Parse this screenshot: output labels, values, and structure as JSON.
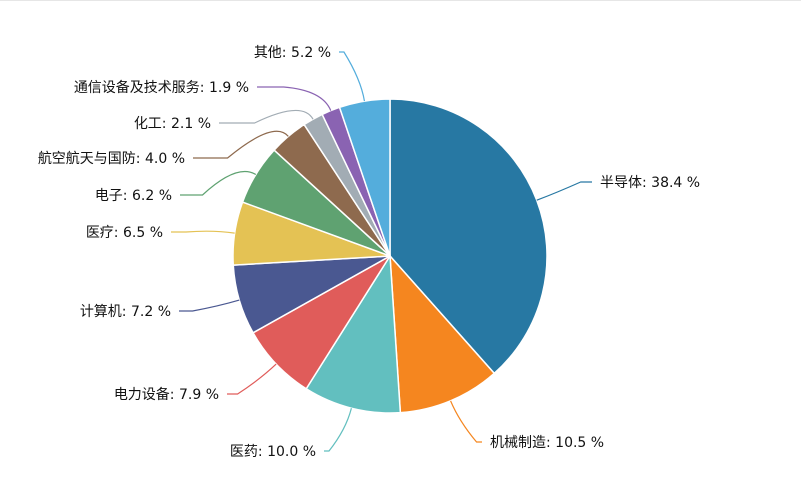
{
  "chart_data": {
    "type": "pie",
    "slices": [
      {
        "name": "半导体",
        "value": 38.4,
        "label": "半导体: 38.4 %",
        "color": "#2778a3"
      },
      {
        "name": "机械制造",
        "value": 10.5,
        "label": "机械制造: 10.5 %",
        "color": "#f5861f"
      },
      {
        "name": "医药",
        "value": 10.0,
        "label": "医药: 10.0 %",
        "color": "#62bfbf"
      },
      {
        "name": "电力设备",
        "value": 7.9,
        "label": "电力设备: 7.9 %",
        "color": "#e05c5a"
      },
      {
        "name": "计算机",
        "value": 7.2,
        "label": "计算机: 7.2 %",
        "color": "#4a5891"
      },
      {
        "name": "医疗",
        "value": 6.5,
        "label": "医疗: 6.5 %",
        "color": "#e4c254"
      },
      {
        "name": "电子",
        "value": 6.2,
        "label": "电子: 6.2 %",
        "color": "#5fa271"
      },
      {
        "name": "航空航天与国防",
        "value": 4.0,
        "label": "航空航天与国防: 4.0 %",
        "color": "#8e6a4e"
      },
      {
        "name": "化工",
        "value": 2.1,
        "label": "化工: 2.1 %",
        "color": "#a2acb4"
      },
      {
        "name": "通信设备及技术服务",
        "value": 1.9,
        "label": "通信设备及技术服务: 1.9 %",
        "color": "#8a63b2"
      },
      {
        "name": "其他",
        "value": 5.2,
        "label": "其他: 5.2 %",
        "color": "#54addc"
      }
    ],
    "start_angle": "12 o'clock",
    "direction": "clockwise",
    "legend": "none"
  }
}
